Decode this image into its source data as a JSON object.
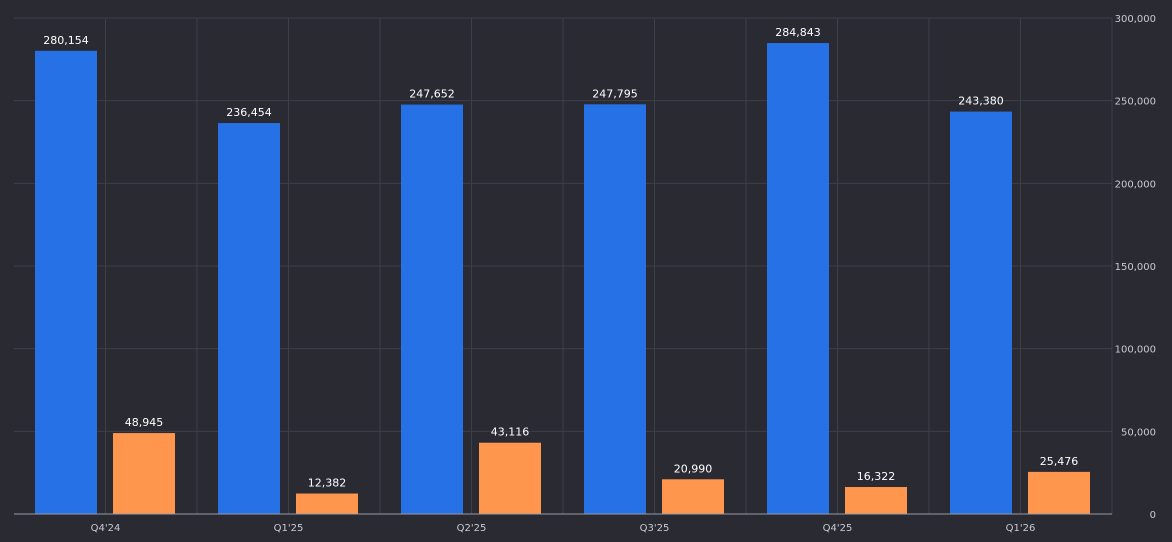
{
  "chart_data": {
    "type": "bar",
    "categories": [
      "Q4'24",
      "Q1'25",
      "Q2'25",
      "Q3'25",
      "Q4'25",
      "Q1'26"
    ],
    "series": [
      {
        "values": [
          280154,
          236454,
          247652,
          247795,
          284843,
          243380
        ],
        "color": "#2771e6"
      },
      {
        "values": [
          48945,
          12382,
          43116,
          20990,
          16322,
          25476
        ],
        "color": "#ff964d"
      }
    ],
    "data_labels": [
      [
        "280,154",
        "236,454",
        "247,652",
        "247,795",
        "284,843",
        "243,380"
      ],
      [
        "48,945",
        "12,382",
        "43,116",
        "20,990",
        "16,322",
        "25,476"
      ]
    ],
    "y_ticks": [
      0,
      50000,
      100000,
      150000,
      200000,
      250000,
      300000
    ],
    "y_tick_labels": [
      "0",
      "50,000",
      "100,000",
      "150,000",
      "200,000",
      "250,000",
      "300,000"
    ],
    "ylim": [
      0,
      300000
    ],
    "y_axis_side": "right",
    "grid": true,
    "title": "",
    "xlabel": "",
    "ylabel": ""
  }
}
